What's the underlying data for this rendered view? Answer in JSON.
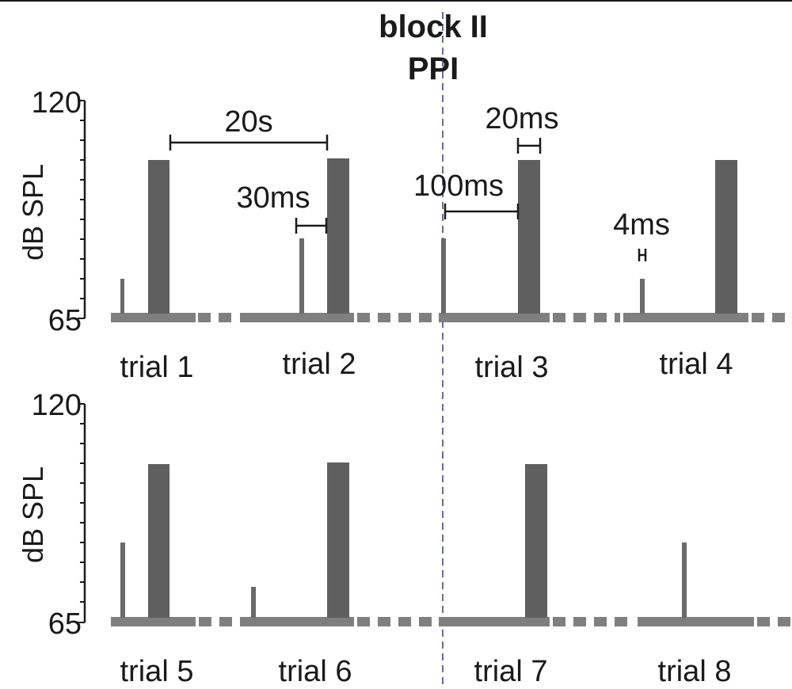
{
  "block": {
    "title": "block II",
    "subtitle": "PPI"
  },
  "axis": {
    "label": "dB SPL",
    "ymax": "120",
    "ymin": "65"
  },
  "annotations": {
    "iti": "20s",
    "lead_30": "30ms",
    "lead_100": "100ms",
    "pulse_dur": "20ms",
    "prepulse_dur": "4ms"
  },
  "trials": {
    "t1": "trial 1",
    "t2": "trial 2",
    "t3": "trial 3",
    "t4": "trial 4",
    "t5": "trial 5",
    "t6": "trial 6",
    "t7": "trial 7",
    "t8": "trial 8"
  },
  "colors": {
    "baseline": "#7f7f7f",
    "pulse": "#5f5f5f",
    "divider": "#2f3f7f"
  }
}
